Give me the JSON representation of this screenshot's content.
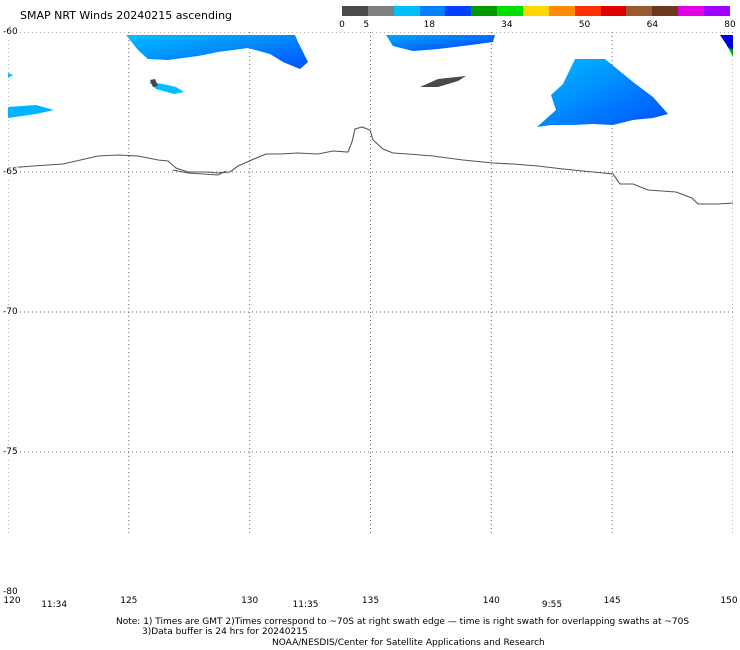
{
  "title": "SMAP NRT Winds 20240215 ascending",
  "colorbar": {
    "labels": [
      {
        "text": "0",
        "value": 0
      },
      {
        "text": "5",
        "value": 5
      },
      {
        "text": "18",
        "value": 18
      },
      {
        "text": "34",
        "value": 34
      },
      {
        "text": "50",
        "value": 50
      },
      {
        "text": "64",
        "value": 64
      },
      {
        "text": "80",
        "value": 80
      }
    ],
    "colors": [
      "#4a4a4a",
      "#7f7f7f",
      "#00bfff",
      "#0080ff",
      "#0040ff",
      "#009a00",
      "#00e000",
      "#ffd700",
      "#ff8c00",
      "#ff3000",
      "#e00000",
      "#9b5a2e",
      "#6b3a1e",
      "#e000e0",
      "#a000ff"
    ]
  },
  "map": {
    "lon_range": [
      120,
      150
    ],
    "lat_range": [
      -60,
      -80
    ],
    "lat_labels": [
      {
        "text": "-60",
        "lat": -60
      },
      {
        "text": "-65",
        "lat": -65
      },
      {
        "text": "-70",
        "lat": -70
      },
      {
        "text": "-75",
        "lat": -75
      },
      {
        "text": "-80",
        "lat": -80
      }
    ],
    "lon_labels": [
      {
        "text": "120",
        "lon": 120
      },
      {
        "text": "125",
        "lon": 125
      },
      {
        "text": "130",
        "lon": 130
      },
      {
        "text": "135",
        "lon": 135
      },
      {
        "text": "140",
        "lon": 140
      },
      {
        "text": "145",
        "lon": 145
      },
      {
        "text": "150",
        "lon": 150
      }
    ],
    "time_labels": [
      {
        "text": "11:34",
        "lon": 121
      },
      {
        "text": "11:35",
        "lon": 131.4
      },
      {
        "text": "9:55",
        "lon": 141.6
      }
    ],
    "wind_colors": {
      "light_blue": "#00bfff",
      "mid_blue": "#0070ff",
      "dark_blue": "#0030ff",
      "calm": "#4a4a4a",
      "green": "#00c000"
    }
  },
  "notes": {
    "line1": "Note: 1) Times are GMT 2)Times correspond to ~70S at right swath edge — time is right swath for overlapping swaths at ~70S",
    "line2": "3)Data buffer is 24 hrs for 20240215",
    "line3": "NOAA/NESDIS/Center for Satellite Applications and Research"
  }
}
